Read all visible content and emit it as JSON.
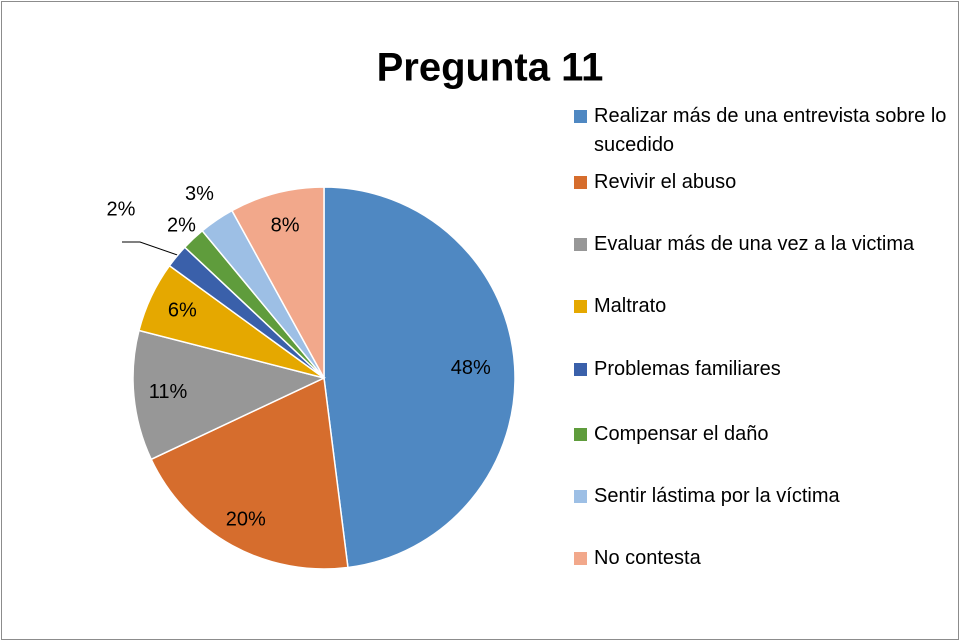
{
  "chart_data": {
    "type": "pie",
    "title": "Pregunta 11",
    "categories": [
      "Realizar más de una entrevista sobre lo sucedido",
      "Revivir el abuso",
      "Evaluar más de una vez a la victima",
      "Maltrato",
      "Problemas familiares",
      "Compensar el daño",
      "Sentir lástima por la víctima",
      "No contesta"
    ],
    "values": [
      48,
      20,
      11,
      6,
      2,
      2,
      3,
      8
    ],
    "value_labels": [
      "48%",
      "20%",
      "11%",
      "6%",
      "2%",
      "2%",
      "3%",
      "8%"
    ],
    "colors": [
      "#4f88c2",
      "#d66d2d",
      "#979797",
      "#e5a800",
      "#3a60aa",
      "#5f9c3c",
      "#9dbfe5",
      "#f2a88b"
    ],
    "legend": "right"
  }
}
